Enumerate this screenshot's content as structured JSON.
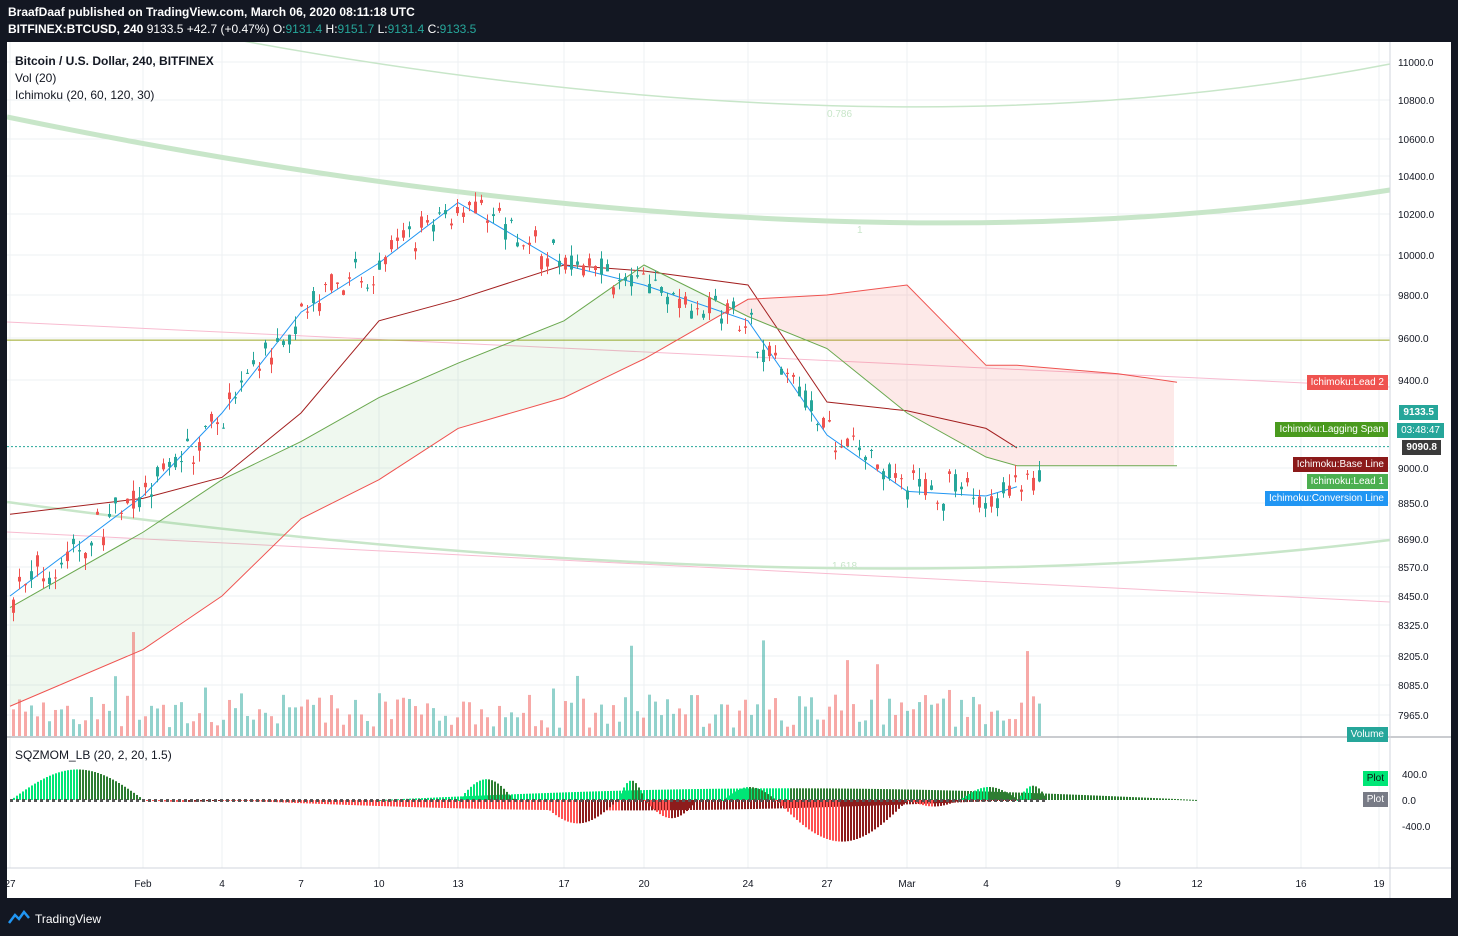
{
  "header": {
    "publisher_line": "BraafDaaf published on TradingView.com, March 06, 2020 08:11:18 UTC",
    "symbol": "BITFINEX:BTCUSD, 240",
    "last": "9133.5",
    "change": "+42.7 (+0.47%)",
    "o_label": "O:",
    "o_value": "9131.4",
    "h_label": "H:",
    "h_value": "9151.7",
    "l_label": "L:",
    "l_value": "9131.4",
    "c_label": "C:",
    "c_value": "9133.5"
  },
  "legend": {
    "main": "Bitcoin / U.S. Dollar, 240, BITFINEX",
    "vol": "Vol (20)",
    "ichimoku": "Ichimoku (20, 60, 120, 30)",
    "oscillator": "SQZMOM_LB (20, 2, 20, 1.5)"
  },
  "tags": {
    "lead2": "Ichimoku:Lead 2",
    "last_price": "9133.5",
    "lagging": "Ichimoku:Lagging Span",
    "countdown": "03:48:47",
    "base_value": "9090.8",
    "base_line": "Ichimoku:Base Line",
    "lead1": "Ichimoku:Lead 1",
    "conversion": "Ichimoku:Conversion Line",
    "volume": "Volume",
    "plot_green": "Plot",
    "plot_gray": "Plot"
  },
  "fib": {
    "level_786": "0.786",
    "level_1": "1",
    "level_1618": "1.618"
  },
  "colors": {
    "up": "#26a69a",
    "down": "#ef5350",
    "lead2_tag": "#ef5350",
    "lagging_tag": "#4a9a1e",
    "base_tag": "#8b1a1a",
    "lead1_tag": "#4caf50",
    "conversion_tag": "#2196f3",
    "hline": "#9aa825",
    "arc": "#c8e6c9",
    "trend": "#f8bbd0"
  },
  "footer": {
    "brand": "TradingView"
  },
  "chart_data": [
    {
      "type": "line",
      "title": "Bitcoin / U.S. Dollar, 240, BITFINEX",
      "y_axis_ticks": [
        11000.0,
        10800.0,
        10600.0,
        10400.0,
        10200.0,
        10000.0,
        9800.0,
        9600.0,
        9400.0,
        9000.0,
        8850.0,
        8690.0,
        8570.0,
        8450.0,
        8325.0,
        8205.0,
        8085.0,
        7965.0
      ],
      "x_axis_ticks": [
        "27",
        "Feb",
        "4",
        "7",
        "10",
        "13",
        "17",
        "20",
        "24",
        "27",
        "Mar",
        "4",
        "9",
        "12",
        "16",
        "19"
      ],
      "series": [
        {
          "name": "Ichimoku:Conversion Line",
          "points": [
            [
              "27",
              8450
            ],
            [
              "Feb",
              8880
            ],
            [
              "4",
              9250
            ],
            [
              "7",
              9720
            ],
            [
              "10",
              9960
            ],
            [
              "13",
              10260
            ],
            [
              "17",
              9950
            ],
            [
              "20",
              9850
            ],
            [
              "24",
              9680
            ],
            [
              "27",
              9150
            ],
            [
              "Mar",
              8900
            ],
            [
              "4",
              8880
            ],
            [
              "5",
              8920
            ]
          ]
        },
        {
          "name": "Ichimoku:Base Line",
          "points": [
            [
              "27",
              8800
            ],
            [
              "Feb",
              8870
            ],
            [
              "4",
              8960
            ],
            [
              "7",
              9250
            ],
            [
              "10",
              9680
            ],
            [
              "13",
              9780
            ],
            [
              "17",
              9950
            ],
            [
              "20",
              9920
            ],
            [
              "24",
              9850
            ],
            [
              "27",
              9300
            ],
            [
              "Mar",
              9260
            ],
            [
              "4",
              9180
            ],
            [
              "5",
              9091
            ]
          ]
        },
        {
          "name": "Ichimoku:Lead 1",
          "points": [
            [
              "27",
              8400
            ],
            [
              "Feb",
              8720
            ],
            [
              "4",
              8950
            ],
            [
              "7",
              9120
            ],
            [
              "10",
              9320
            ],
            [
              "13",
              9480
            ],
            [
              "17",
              9680
            ],
            [
              "20",
              9950
            ],
            [
              "24",
              9700
            ],
            [
              "27",
              9550
            ],
            [
              "Mar",
              9250
            ],
            [
              "4",
              9050
            ],
            [
              "5",
              9010
            ],
            [
              "9",
              9010
            ],
            [
              "11",
              9010
            ]
          ]
        },
        {
          "name": "Ichimoku:Lead 2",
          "points": [
            [
              "27",
              8000
            ],
            [
              "Feb",
              8230
            ],
            [
              "4",
              8450
            ],
            [
              "7",
              8780
            ],
            [
              "10",
              8950
            ],
            [
              "13",
              9180
            ],
            [
              "17",
              9320
            ],
            [
              "20",
              9500
            ],
            [
              "24",
              9780
            ],
            [
              "27",
              9800
            ],
            [
              "Mar",
              9850
            ],
            [
              "4",
              9470
            ],
            [
              "5",
              9470
            ],
            [
              "9",
              9430
            ],
            [
              "11",
              9390
            ]
          ]
        }
      ],
      "last_price": 9133.5,
      "hline": 9590,
      "fib_levels": [
        "0.786",
        "1",
        "1.618"
      ]
    },
    {
      "type": "bar",
      "title": "SQZMOM_LB (20, 2, 20, 1.5)",
      "y_axis_ticks": [
        400.0,
        0.0,
        -400.0
      ],
      "cycles": [
        {
          "from": "27",
          "peak": 470,
          "to": "Feb"
        },
        {
          "from": "Feb",
          "peak": -30,
          "to": "4"
        },
        {
          "from": "4",
          "peak": -160,
          "to": "5"
        },
        {
          "from": "6",
          "peak": 400,
          "to": "10"
        },
        {
          "from": "10",
          "peak": 180,
          "to": "12"
        },
        {
          "from": "12",
          "peak": -100,
          "to": "13"
        },
        {
          "from": "13",
          "peak": 320,
          "to": "15"
        },
        {
          "from": "16",
          "peak": -360,
          "to": "19"
        },
        {
          "from": "19",
          "peak": 300,
          "to": "20"
        },
        {
          "from": "20",
          "peak": -280,
          "to": "22"
        },
        {
          "from": "23",
          "peak": 200,
          "to": "25"
        },
        {
          "from": "25",
          "peak": -640,
          "to": "Mar"
        },
        {
          "from": "Mar",
          "peak": -100,
          "to": "3"
        },
        {
          "from": "3",
          "peak": 200,
          "to": "5"
        },
        {
          "from": "5",
          "peak": 220,
          "to": "6"
        }
      ]
    }
  ]
}
